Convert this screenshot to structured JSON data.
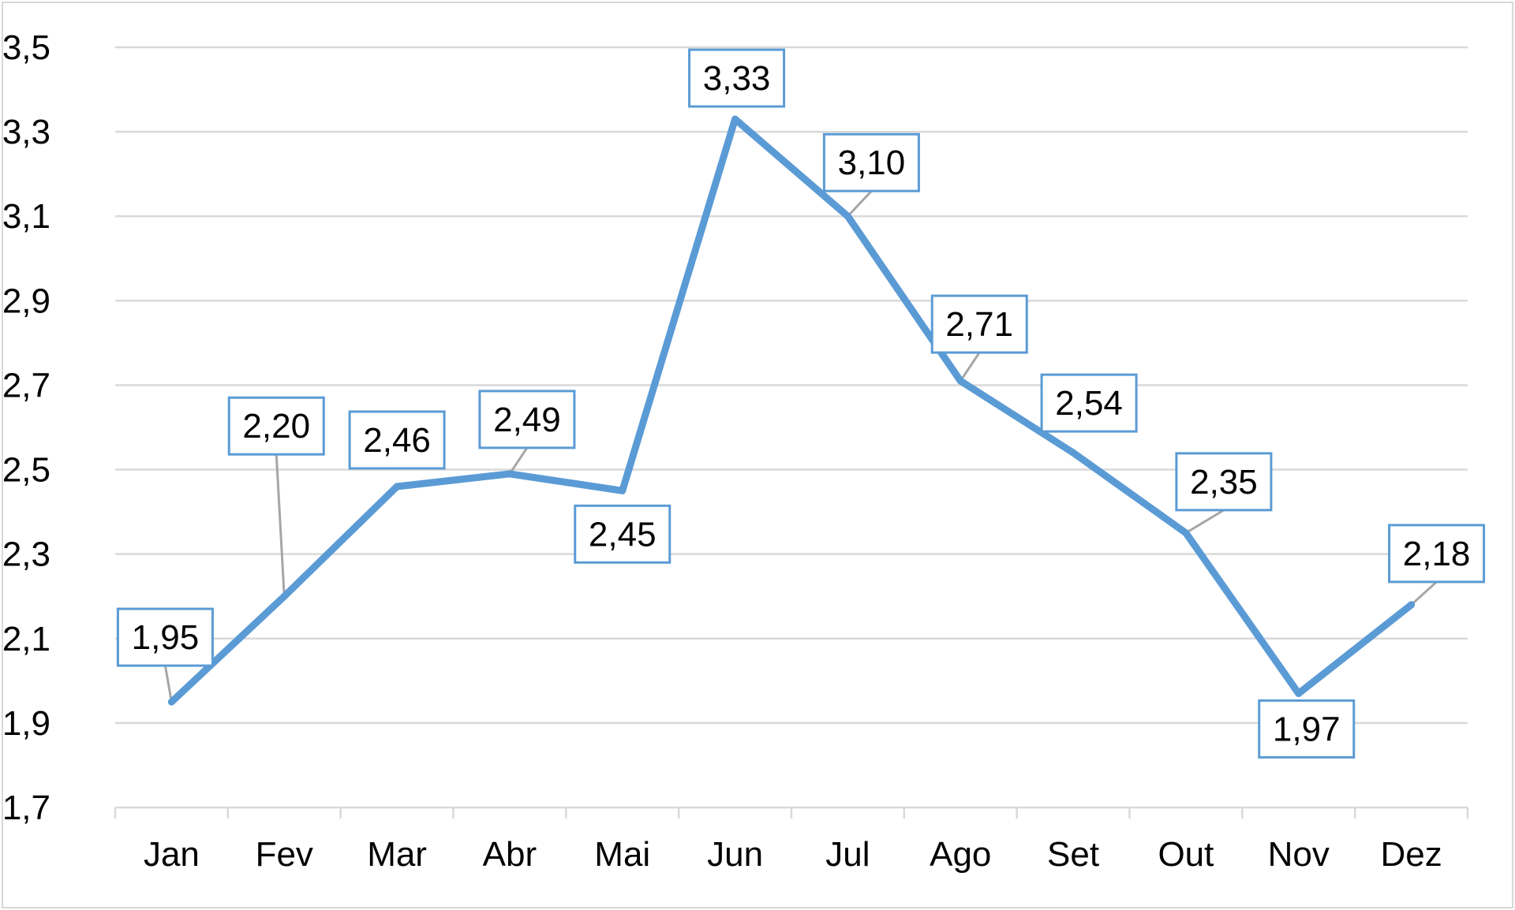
{
  "chart_data": {
    "type": "line",
    "title": "",
    "xlabel": "",
    "ylabel": "",
    "categories": [
      "Jan",
      "Fev",
      "Mar",
      "Abr",
      "Mai",
      "Jun",
      "Jul",
      "Ago",
      "Set",
      "Out",
      "Nov",
      "Dez"
    ],
    "series": [
      {
        "values": [
          1.95,
          2.2,
          2.46,
          2.49,
          2.45,
          3.33,
          3.1,
          2.71,
          2.54,
          2.35,
          1.97,
          2.18
        ],
        "labels": [
          "1,95",
          "2,20",
          "2,46",
          "2,49",
          "2,45",
          "3,33",
          "3,10",
          "2,71",
          "2,54",
          "2,35",
          "1,97",
          "2,18"
        ],
        "label_positions": [
          "above",
          "above",
          "above",
          "above",
          "below",
          "above",
          "above",
          "above",
          "above",
          "above",
          "below",
          "above"
        ],
        "color": "#5b9bd5"
      }
    ],
    "ylim": [
      1.7,
      3.5
    ],
    "yticks": [
      1.7,
      1.9,
      2.1,
      2.3,
      2.5,
      2.7,
      2.9,
      3.1,
      3.3,
      3.5
    ],
    "ytick_labels": [
      "1,7",
      "1,9",
      "2,1",
      "2,3",
      "2,5",
      "2,7",
      "2,9",
      "3,1",
      "3,3",
      "3,5"
    ],
    "grid": true,
    "legend": "none",
    "colors": {
      "line": "#5b9bd5",
      "label_border": "#5b9bd5",
      "grid": "#d9d9d9",
      "leader": "#a6a6a6",
      "text": "#000000"
    }
  }
}
